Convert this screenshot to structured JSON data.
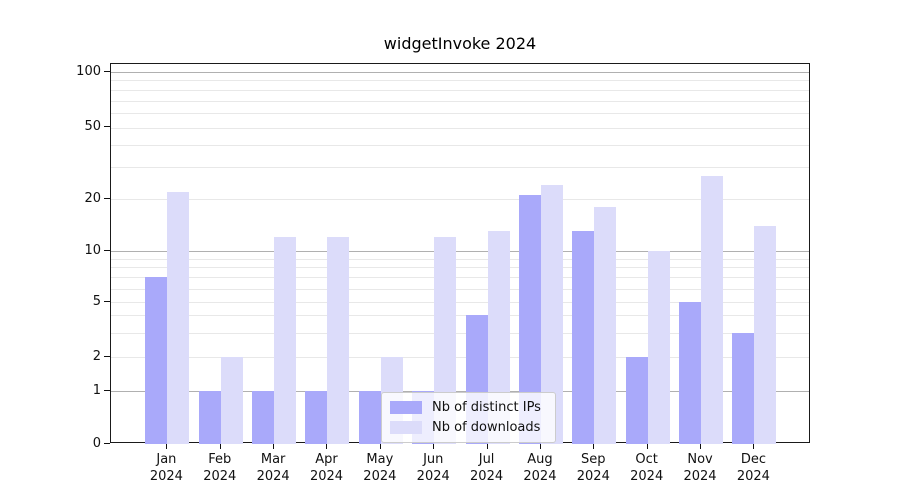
{
  "title": "widgetInvoke 2024",
  "colors": {
    "bar_distinct_ips": "#a9a9fa",
    "bar_downloads": "#dcdcfa",
    "grid_major": "#b0b0b0",
    "grid_minor": "#e8e8e8",
    "spine": "#1a1a1a",
    "text": "#111111"
  },
  "chart_data": {
    "type": "bar",
    "title": "widgetInvoke 2024",
    "categories": [
      "Jan 2024",
      "Feb 2024",
      "Mar 2024",
      "Apr 2024",
      "May 2024",
      "Jun 2024",
      "Jul 2024",
      "Aug 2024",
      "Sep 2024",
      "Oct 2024",
      "Nov 2024",
      "Dec 2024"
    ],
    "series": [
      {
        "name": "Nb of distinct IPs",
        "color": "#a9a9fa",
        "values": [
          7,
          1,
          1,
          1,
          1,
          1,
          4,
          21,
          13,
          2,
          5,
          3
        ]
      },
      {
        "name": "Nb of downloads",
        "color": "#dcdcfa",
        "values": [
          22,
          2,
          12,
          12,
          2,
          12,
          13,
          24,
          18,
          10,
          27,
          14
        ]
      }
    ],
    "xlabel": "",
    "ylabel": "",
    "yscale": "symlog",
    "yticks": [
      0,
      1,
      2,
      5,
      10,
      20,
      50,
      100
    ],
    "ylim": [
      0,
      110
    ],
    "grid": true,
    "legend_position": "lower center"
  }
}
